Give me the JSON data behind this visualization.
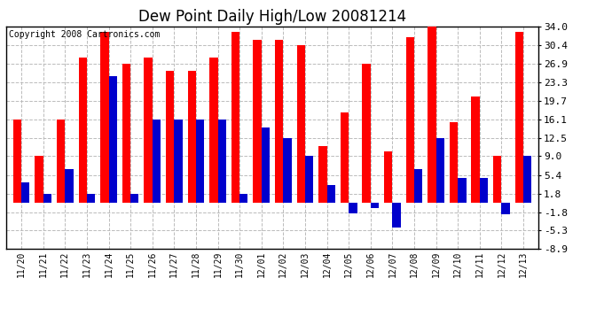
{
  "title": "Dew Point Daily High/Low 20081214",
  "copyright": "Copyright 2008 Cartronics.com",
  "categories": [
    "11/20",
    "11/21",
    "11/22",
    "11/23",
    "11/24",
    "11/25",
    "11/26",
    "11/27",
    "11/28",
    "11/29",
    "11/30",
    "12/01",
    "12/02",
    "12/03",
    "12/04",
    "12/05",
    "12/06",
    "12/07",
    "12/08",
    "12/09",
    "12/10",
    "12/11",
    "12/12",
    "12/13"
  ],
  "highs": [
    16.1,
    9.0,
    16.1,
    28.0,
    33.0,
    26.9,
    28.0,
    25.5,
    25.5,
    28.0,
    33.0,
    31.5,
    31.5,
    30.4,
    11.0,
    17.5,
    26.9,
    10.0,
    32.0,
    34.0,
    15.5,
    20.5,
    9.0,
    33.0
  ],
  "lows": [
    4.0,
    1.8,
    6.5,
    1.8,
    24.5,
    1.8,
    16.1,
    16.1,
    16.1,
    16.1,
    1.8,
    14.5,
    12.5,
    9.0,
    3.5,
    -2.0,
    -1.0,
    -4.7,
    6.5,
    12.5,
    4.8,
    4.8,
    -2.2,
    9.0
  ],
  "yticks": [
    34.0,
    30.4,
    26.9,
    23.3,
    19.7,
    16.1,
    12.5,
    9.0,
    5.4,
    1.8,
    -1.8,
    -5.3,
    -8.9
  ],
  "ymin": -8.9,
  "ymax": 34.0,
  "high_color": "#ff0000",
  "low_color": "#0000cc",
  "background_color": "#ffffff",
  "grid_color": "#bbbbbb",
  "bar_width": 0.38,
  "title_fontsize": 12,
  "copyright_fontsize": 7,
  "fig_width": 6.9,
  "fig_height": 3.75,
  "dpi": 100
}
